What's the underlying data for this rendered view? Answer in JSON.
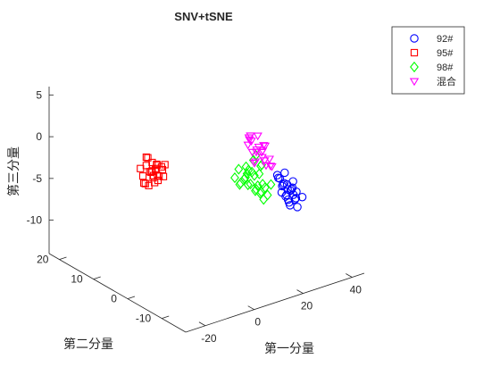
{
  "chart_data": {
    "type": "scatter",
    "title": "SNV+tSNE",
    "xlabel": "第一分量",
    "ylabel": "第二分量",
    "zlabel": "第三分量",
    "x_ticks": [
      "-20",
      "0",
      "20",
      "40"
    ],
    "y_ticks": [
      "-10",
      "0",
      "10",
      "20"
    ],
    "z_ticks": [
      "-10",
      "-5",
      "0",
      "5"
    ],
    "xlim": [
      -28,
      45
    ],
    "ylim": [
      -17,
      23
    ],
    "zlim": [
      -14,
      6
    ],
    "grid": false,
    "legend_position": "top-right",
    "series": [
      {
        "name": "92#",
        "marker": "circle",
        "color": "#0000ff",
        "points": [
          [
            28,
            -4,
            -4
          ],
          [
            29,
            -5,
            -4.5
          ],
          [
            30,
            -4,
            -5
          ],
          [
            31,
            -6,
            -5
          ],
          [
            32,
            -5,
            -5.5
          ],
          [
            30,
            -3,
            -4.5
          ],
          [
            33,
            -4,
            -6
          ],
          [
            31,
            -3,
            -5.5
          ],
          [
            29,
            -6,
            -5
          ],
          [
            32,
            -6,
            -6.5
          ],
          [
            34,
            -5,
            -6
          ],
          [
            30,
            -5,
            -6
          ],
          [
            33,
            -3,
            -5.5
          ],
          [
            31,
            -7,
            -6
          ],
          [
            28,
            -5,
            -5.5
          ],
          [
            32,
            -4,
            -7
          ],
          [
            35,
            -6,
            -6.5
          ],
          [
            31,
            -5,
            -7
          ],
          [
            29,
            -3,
            -4
          ],
          [
            33,
            -6,
            -7.5
          ],
          [
            30,
            -7,
            -5.5
          ],
          [
            34,
            -4,
            -5
          ],
          [
            32,
            -3,
            -4
          ],
          [
            31,
            -4,
            -6.5
          ],
          [
            30,
            -6,
            -7
          ]
        ]
      },
      {
        "name": "95#",
        "marker": "square",
        "color": "#ff0000",
        "points": [
          [
            -12,
            6,
            -1
          ],
          [
            -11,
            5,
            -1.5
          ],
          [
            -10,
            6,
            -2
          ],
          [
            -12,
            7,
            -2.5
          ],
          [
            -11,
            4,
            -1
          ],
          [
            -10,
            5,
            -3
          ],
          [
            -13,
            6,
            -3
          ],
          [
            -11,
            7,
            -3.5
          ],
          [
            -9,
            6,
            -2.5
          ],
          [
            -12,
            5,
            -1.5
          ],
          [
            -10,
            7,
            -0.5
          ],
          [
            -11,
            6,
            -3.5
          ],
          [
            -12,
            4,
            -2
          ],
          [
            -9,
            5,
            -1
          ],
          [
            -13,
            7,
            -1.5
          ],
          [
            -10,
            4,
            -2.5
          ],
          [
            -11,
            5,
            -0.5
          ],
          [
            -12,
            6,
            0
          ],
          [
            -5,
            8,
            -2
          ],
          [
            -4,
            7,
            -2.5
          ],
          [
            -5,
            6,
            -3
          ],
          [
            -3,
            8,
            -2.5
          ],
          [
            -4,
            9,
            -3
          ],
          [
            -3,
            7,
            -2
          ],
          [
            -6,
            7,
            -3
          ],
          [
            -4,
            8,
            -3.5
          ]
        ]
      },
      {
        "name": "98#",
        "marker": "diamond",
        "color": "#00ff00",
        "points": [
          [
            13,
            -2,
            -3
          ],
          [
            14,
            -3,
            -3.5
          ],
          [
            15,
            -2,
            -4
          ],
          [
            16,
            -3,
            -3
          ],
          [
            17,
            -2,
            -3.5
          ],
          [
            18,
            -3,
            -4
          ],
          [
            19,
            -1,
            -2.5
          ],
          [
            20,
            -2,
            -3
          ],
          [
            21,
            -3,
            -4.5
          ],
          [
            22,
            -1,
            -2
          ],
          [
            23,
            -2,
            -3.5
          ],
          [
            24,
            -3,
            -5
          ],
          [
            25,
            -4,
            -4.5
          ],
          [
            23,
            -1,
            -1.5
          ],
          [
            21,
            -4,
            -5
          ],
          [
            20,
            -1,
            -3
          ],
          [
            19,
            -4,
            -4.5
          ],
          [
            22,
            -3,
            -5.5
          ],
          [
            24,
            -2,
            -2.5
          ],
          [
            18,
            -2,
            -3
          ],
          [
            22,
            -4,
            -6
          ],
          [
            25,
            -1,
            -3
          ],
          [
            21,
            -2,
            -3.5
          ],
          [
            20,
            -3,
            -5
          ],
          [
            17,
            -3,
            -4
          ],
          [
            23,
            -3,
            -4.5
          ],
          [
            16,
            -1,
            -2.5
          ],
          [
            25,
            -3,
            -6
          ]
        ]
      },
      {
        "name": "混合",
        "marker": "triangle-down",
        "color": "#ff00ff",
        "points": [
          [
            16,
            -4,
            2
          ],
          [
            17,
            -4,
            1.5
          ],
          [
            16,
            -5,
            0.5
          ],
          [
            18,
            -3,
            1.8
          ],
          [
            19,
            -4,
            0
          ],
          [
            20,
            -5,
            -0.5
          ],
          [
            21,
            -3,
            1.5
          ],
          [
            22,
            -4,
            0.5
          ],
          [
            23,
            -5,
            -1
          ],
          [
            24,
            -3,
            0
          ],
          [
            22,
            -2,
            -0.5
          ],
          [
            20,
            -3,
            -1.5
          ],
          [
            21,
            -5,
            -1
          ],
          [
            23,
            -4,
            -2
          ],
          [
            24,
            -5,
            -2
          ],
          [
            22,
            -6,
            -1.5
          ],
          [
            20,
            -4,
            0.5
          ],
          [
            19,
            -2,
            1
          ],
          [
            17,
            -3,
            0.8
          ],
          [
            23,
            -3,
            -0.5
          ],
          [
            24,
            -2,
            -1
          ],
          [
            21,
            -2,
            -2
          ]
        ]
      }
    ]
  }
}
